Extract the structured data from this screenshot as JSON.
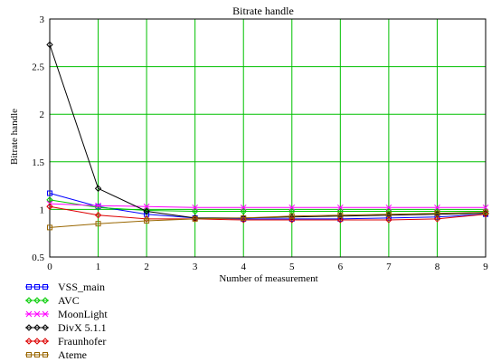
{
  "chart_data": {
    "type": "line",
    "title": "Bitrate handle",
    "xlabel": "Number of measurement",
    "ylabel": "Bitrate handle",
    "x": [
      0,
      1,
      2,
      3,
      4,
      5,
      6,
      7,
      8,
      9
    ],
    "xlim": [
      0,
      9
    ],
    "ylim": [
      0.5,
      3
    ],
    "yticks": [
      "0.5",
      "1",
      "1.5",
      "2",
      "2.5",
      "3"
    ],
    "xticks": [
      "0",
      "1",
      "2",
      "3",
      "4",
      "5",
      "6",
      "7",
      "8",
      "9"
    ],
    "grid": true,
    "grid_color": "#00c000",
    "legend_position": "bottom-left",
    "series": [
      {
        "name": "VSS_main",
        "color": "#0000ff",
        "marker": "square",
        "values": [
          1.17,
          1.03,
          0.95,
          0.91,
          0.9,
          0.9,
          0.9,
          0.91,
          0.92,
          0.95
        ]
      },
      {
        "name": "AVC",
        "color": "#00cc00",
        "marker": "diamond",
        "values": [
          1.1,
          1.02,
          0.99,
          0.98,
          0.98,
          0.98,
          0.98,
          0.98,
          0.98,
          0.98
        ]
      },
      {
        "name": "MoonLight",
        "color": "#ff00ff",
        "marker": "x",
        "values": [
          1.06,
          1.04,
          1.03,
          1.02,
          1.02,
          1.02,
          1.02,
          1.02,
          1.02,
          1.02
        ]
      },
      {
        "name": "DivX 5.1.1",
        "color": "#000000",
        "marker": "diamond",
        "values": [
          2.73,
          1.22,
          0.98,
          0.91,
          0.91,
          0.92,
          0.93,
          0.94,
          0.95,
          0.96
        ]
      },
      {
        "name": "Fraunhofer",
        "color": "#dd0000",
        "marker": "diamond",
        "values": [
          1.03,
          0.94,
          0.9,
          0.9,
          0.89,
          0.89,
          0.89,
          0.89,
          0.9,
          0.95
        ]
      },
      {
        "name": "Ateme",
        "color": "#996600",
        "marker": "square",
        "values": [
          0.81,
          0.85,
          0.88,
          0.9,
          0.91,
          0.93,
          0.94,
          0.95,
          0.96,
          0.97
        ]
      }
    ]
  }
}
